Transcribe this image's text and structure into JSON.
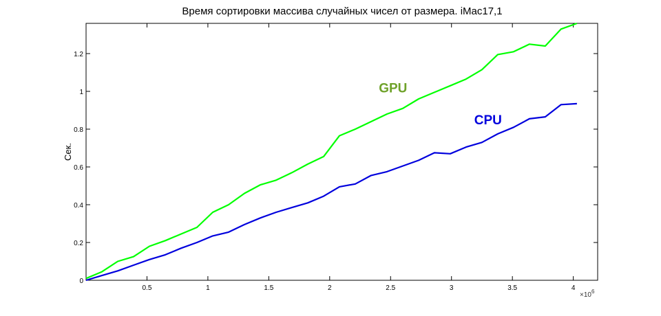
{
  "chart_data": {
    "type": "line",
    "title": "Время сортировки массива случайных чисел от размера. iMac17,1",
    "xlabel": "",
    "ylabel": "Сек.",
    "x_multiplier": "×10",
    "x_multiplier_exp": "6",
    "xlim": [
      0,
      4.2
    ],
    "ylim": [
      0,
      1.36
    ],
    "xticks": [
      0.5,
      1,
      1.5,
      2,
      2.5,
      3,
      3.5,
      4
    ],
    "xtick_labels": [
      "0.5",
      "1",
      "1.5",
      "2",
      "2.5",
      "3",
      "3.5",
      "4"
    ],
    "yticks": [
      0,
      0.2,
      0.4,
      0.6,
      0.8,
      1,
      1.2
    ],
    "ytick_labels": [
      "0",
      "0.2",
      "0.4",
      "0.6",
      "0.8",
      "1",
      "1.2"
    ],
    "grid": false,
    "series": [
      {
        "name": "GPU",
        "color": "#00ff00",
        "x": [
          0,
          0.13,
          0.26,
          0.39,
          0.52,
          0.65,
          0.78,
          0.91,
          1.04,
          1.17,
          1.3,
          1.43,
          1.56,
          1.69,
          1.82,
          1.95,
          2.08,
          2.21,
          2.34,
          2.47,
          2.6,
          2.73,
          2.86,
          2.99,
          3.12,
          3.25,
          3.38,
          3.51,
          3.64,
          3.77,
          3.9,
          4.03
        ],
        "values": [
          0.01,
          0.045,
          0.1,
          0.125,
          0.18,
          0.21,
          0.245,
          0.28,
          0.36,
          0.4,
          0.46,
          0.505,
          0.53,
          0.57,
          0.615,
          0.655,
          0.765,
          0.8,
          0.84,
          0.88,
          0.91,
          0.96,
          0.995,
          1.03,
          1.065,
          1.115,
          1.195,
          1.21,
          1.25,
          1.24,
          1.33,
          1.36
        ]
      },
      {
        "name": "CPU",
        "color": "#0000dd",
        "x": [
          0,
          0.13,
          0.26,
          0.39,
          0.52,
          0.65,
          0.78,
          0.91,
          1.04,
          1.17,
          1.3,
          1.43,
          1.56,
          1.69,
          1.82,
          1.95,
          2.08,
          2.21,
          2.34,
          2.47,
          2.6,
          2.73,
          2.86,
          2.99,
          3.12,
          3.25,
          3.38,
          3.51,
          3.64,
          3.77,
          3.9,
          4.03
        ],
        "values": [
          0.0,
          0.025,
          0.05,
          0.08,
          0.11,
          0.135,
          0.17,
          0.2,
          0.235,
          0.255,
          0.295,
          0.33,
          0.36,
          0.385,
          0.41,
          0.445,
          0.495,
          0.51,
          0.555,
          0.575,
          0.605,
          0.635,
          0.675,
          0.67,
          0.705,
          0.73,
          0.775,
          0.81,
          0.855,
          0.865,
          0.93,
          0.935
        ]
      }
    ],
    "annotations": [
      {
        "text": "GPU",
        "x": 2.52,
        "y": 0.995,
        "color": "#6fa22a"
      },
      {
        "text": "CPU",
        "x": 3.3,
        "y": 0.825,
        "color": "#0000dd"
      }
    ]
  }
}
